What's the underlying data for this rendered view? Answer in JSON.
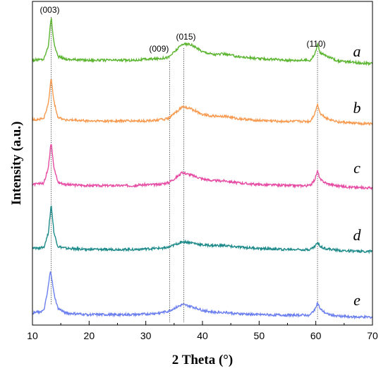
{
  "chart_data": {
    "type": "line",
    "title": "",
    "xlabel": "2 Theta (°)",
    "ylabel": "Intensity (a.u.)",
    "xlim": [
      10,
      70
    ],
    "x_ticks": [
      "10",
      "20",
      "30",
      "40",
      "50",
      "60",
      "70"
    ],
    "y_ticks_shown": false,
    "grid": false,
    "legend": "inline-right",
    "series": [
      {
        "name": "a",
        "color": "#5cb531",
        "points": [
          [
            10,
            0.1
          ],
          [
            12,
            0.12
          ],
          [
            12.8,
            0.4
          ],
          [
            13.3,
            1.0
          ],
          [
            13.8,
            0.45
          ],
          [
            14.5,
            0.18
          ],
          [
            16,
            0.12
          ],
          [
            20,
            0.1
          ],
          [
            25,
            0.1
          ],
          [
            28,
            0.1
          ],
          [
            30,
            0.12
          ],
          [
            32,
            0.13
          ],
          [
            34,
            0.16
          ],
          [
            35,
            0.27
          ],
          [
            36.5,
            0.44
          ],
          [
            38,
            0.42
          ],
          [
            40,
            0.28
          ],
          [
            42,
            0.22
          ],
          [
            44,
            0.23
          ],
          [
            46,
            0.18
          ],
          [
            50,
            0.13
          ],
          [
            55,
            0.1
          ],
          [
            59,
            0.1
          ],
          [
            59.8,
            0.22
          ],
          [
            60.3,
            0.42
          ],
          [
            60.8,
            0.25
          ],
          [
            62,
            0.18
          ],
          [
            64,
            0.08
          ],
          [
            67,
            0.05
          ],
          [
            70,
            0.03
          ]
        ]
      },
      {
        "name": "b",
        "color": "#f79a4f",
        "points": [
          [
            10,
            0.12
          ],
          [
            12,
            0.15
          ],
          [
            12.8,
            0.45
          ],
          [
            13.3,
            1.0
          ],
          [
            13.8,
            0.5
          ],
          [
            14.5,
            0.18
          ],
          [
            16,
            0.12
          ],
          [
            20,
            0.1
          ],
          [
            25,
            0.1
          ],
          [
            28,
            0.1
          ],
          [
            30,
            0.1
          ],
          [
            32,
            0.12
          ],
          [
            34,
            0.15
          ],
          [
            35,
            0.25
          ],
          [
            36.5,
            0.4
          ],
          [
            38,
            0.35
          ],
          [
            40,
            0.24
          ],
          [
            42,
            0.2
          ],
          [
            44,
            0.2
          ],
          [
            46,
            0.15
          ],
          [
            50,
            0.11
          ],
          [
            55,
            0.09
          ],
          [
            59,
            0.09
          ],
          [
            59.8,
            0.25
          ],
          [
            60.3,
            0.45
          ],
          [
            60.8,
            0.25
          ],
          [
            62,
            0.15
          ],
          [
            64,
            0.08
          ],
          [
            67,
            0.05
          ],
          [
            70,
            0.04
          ]
        ]
      },
      {
        "name": "c",
        "color": "#e64ca4",
        "points": [
          [
            10,
            0.1
          ],
          [
            12,
            0.13
          ],
          [
            12.8,
            0.45
          ],
          [
            13.3,
            1.0
          ],
          [
            13.8,
            0.45
          ],
          [
            14.5,
            0.15
          ],
          [
            16,
            0.1
          ],
          [
            20,
            0.08
          ],
          [
            25,
            0.08
          ],
          [
            28,
            0.08
          ],
          [
            30,
            0.1
          ],
          [
            32,
            0.1
          ],
          [
            34,
            0.14
          ],
          [
            35,
            0.22
          ],
          [
            36.5,
            0.35
          ],
          [
            38,
            0.3
          ],
          [
            40,
            0.22
          ],
          [
            42,
            0.18
          ],
          [
            44,
            0.18
          ],
          [
            46,
            0.14
          ],
          [
            50,
            0.1
          ],
          [
            55,
            0.08
          ],
          [
            59,
            0.08
          ],
          [
            59.8,
            0.2
          ],
          [
            60.3,
            0.38
          ],
          [
            60.8,
            0.2
          ],
          [
            62,
            0.12
          ],
          [
            64,
            0.07
          ],
          [
            67,
            0.04
          ],
          [
            70,
            0.03
          ]
        ]
      },
      {
        "name": "d",
        "color": "#1e8a8a",
        "points": [
          [
            10,
            0.08
          ],
          [
            12,
            0.1
          ],
          [
            12.8,
            0.4
          ],
          [
            13.3,
            1.0
          ],
          [
            13.8,
            0.4
          ],
          [
            14.5,
            0.12
          ],
          [
            16,
            0.08
          ],
          [
            20,
            0.06
          ],
          [
            25,
            0.06
          ],
          [
            28,
            0.06
          ],
          [
            30,
            0.07
          ],
          [
            32,
            0.08
          ],
          [
            34,
            0.1
          ],
          [
            35,
            0.15
          ],
          [
            36.5,
            0.22
          ],
          [
            38,
            0.2
          ],
          [
            40,
            0.15
          ],
          [
            42,
            0.14
          ],
          [
            44,
            0.14
          ],
          [
            46,
            0.11
          ],
          [
            50,
            0.08
          ],
          [
            55,
            0.06
          ],
          [
            59,
            0.06
          ],
          [
            59.8,
            0.12
          ],
          [
            60.3,
            0.2
          ],
          [
            60.8,
            0.12
          ],
          [
            62,
            0.07
          ],
          [
            64,
            0.04
          ],
          [
            67,
            0.02
          ],
          [
            70,
            0.02
          ]
        ]
      },
      {
        "name": "e",
        "color": "#6b7fef",
        "points": [
          [
            10,
            0.1
          ],
          [
            12,
            0.15
          ],
          [
            12.6,
            0.5
          ],
          [
            13.2,
            1.0
          ],
          [
            13.8,
            0.5
          ],
          [
            14.5,
            0.2
          ],
          [
            16,
            0.1
          ],
          [
            20,
            0.07
          ],
          [
            25,
            0.07
          ],
          [
            28,
            0.07
          ],
          [
            30,
            0.08
          ],
          [
            32,
            0.1
          ],
          [
            34,
            0.14
          ],
          [
            35,
            0.2
          ],
          [
            36.5,
            0.28
          ],
          [
            38,
            0.24
          ],
          [
            40,
            0.16
          ],
          [
            42,
            0.12
          ],
          [
            44,
            0.12
          ],
          [
            46,
            0.09
          ],
          [
            50,
            0.07
          ],
          [
            55,
            0.06
          ],
          [
            59,
            0.06
          ],
          [
            59.8,
            0.18
          ],
          [
            60.3,
            0.32
          ],
          [
            60.8,
            0.18
          ],
          [
            62,
            0.08
          ],
          [
            64,
            0.04
          ],
          [
            67,
            0.02
          ],
          [
            70,
            0.02
          ]
        ]
      }
    ],
    "annotations": [
      {
        "text": "(003)",
        "x": 13.3
      },
      {
        "text": "(009)",
        "x": 34.2
      },
      {
        "text": "(015)",
        "x": 36.7
      },
      {
        "text": "(110)",
        "x": 60.3
      }
    ]
  }
}
